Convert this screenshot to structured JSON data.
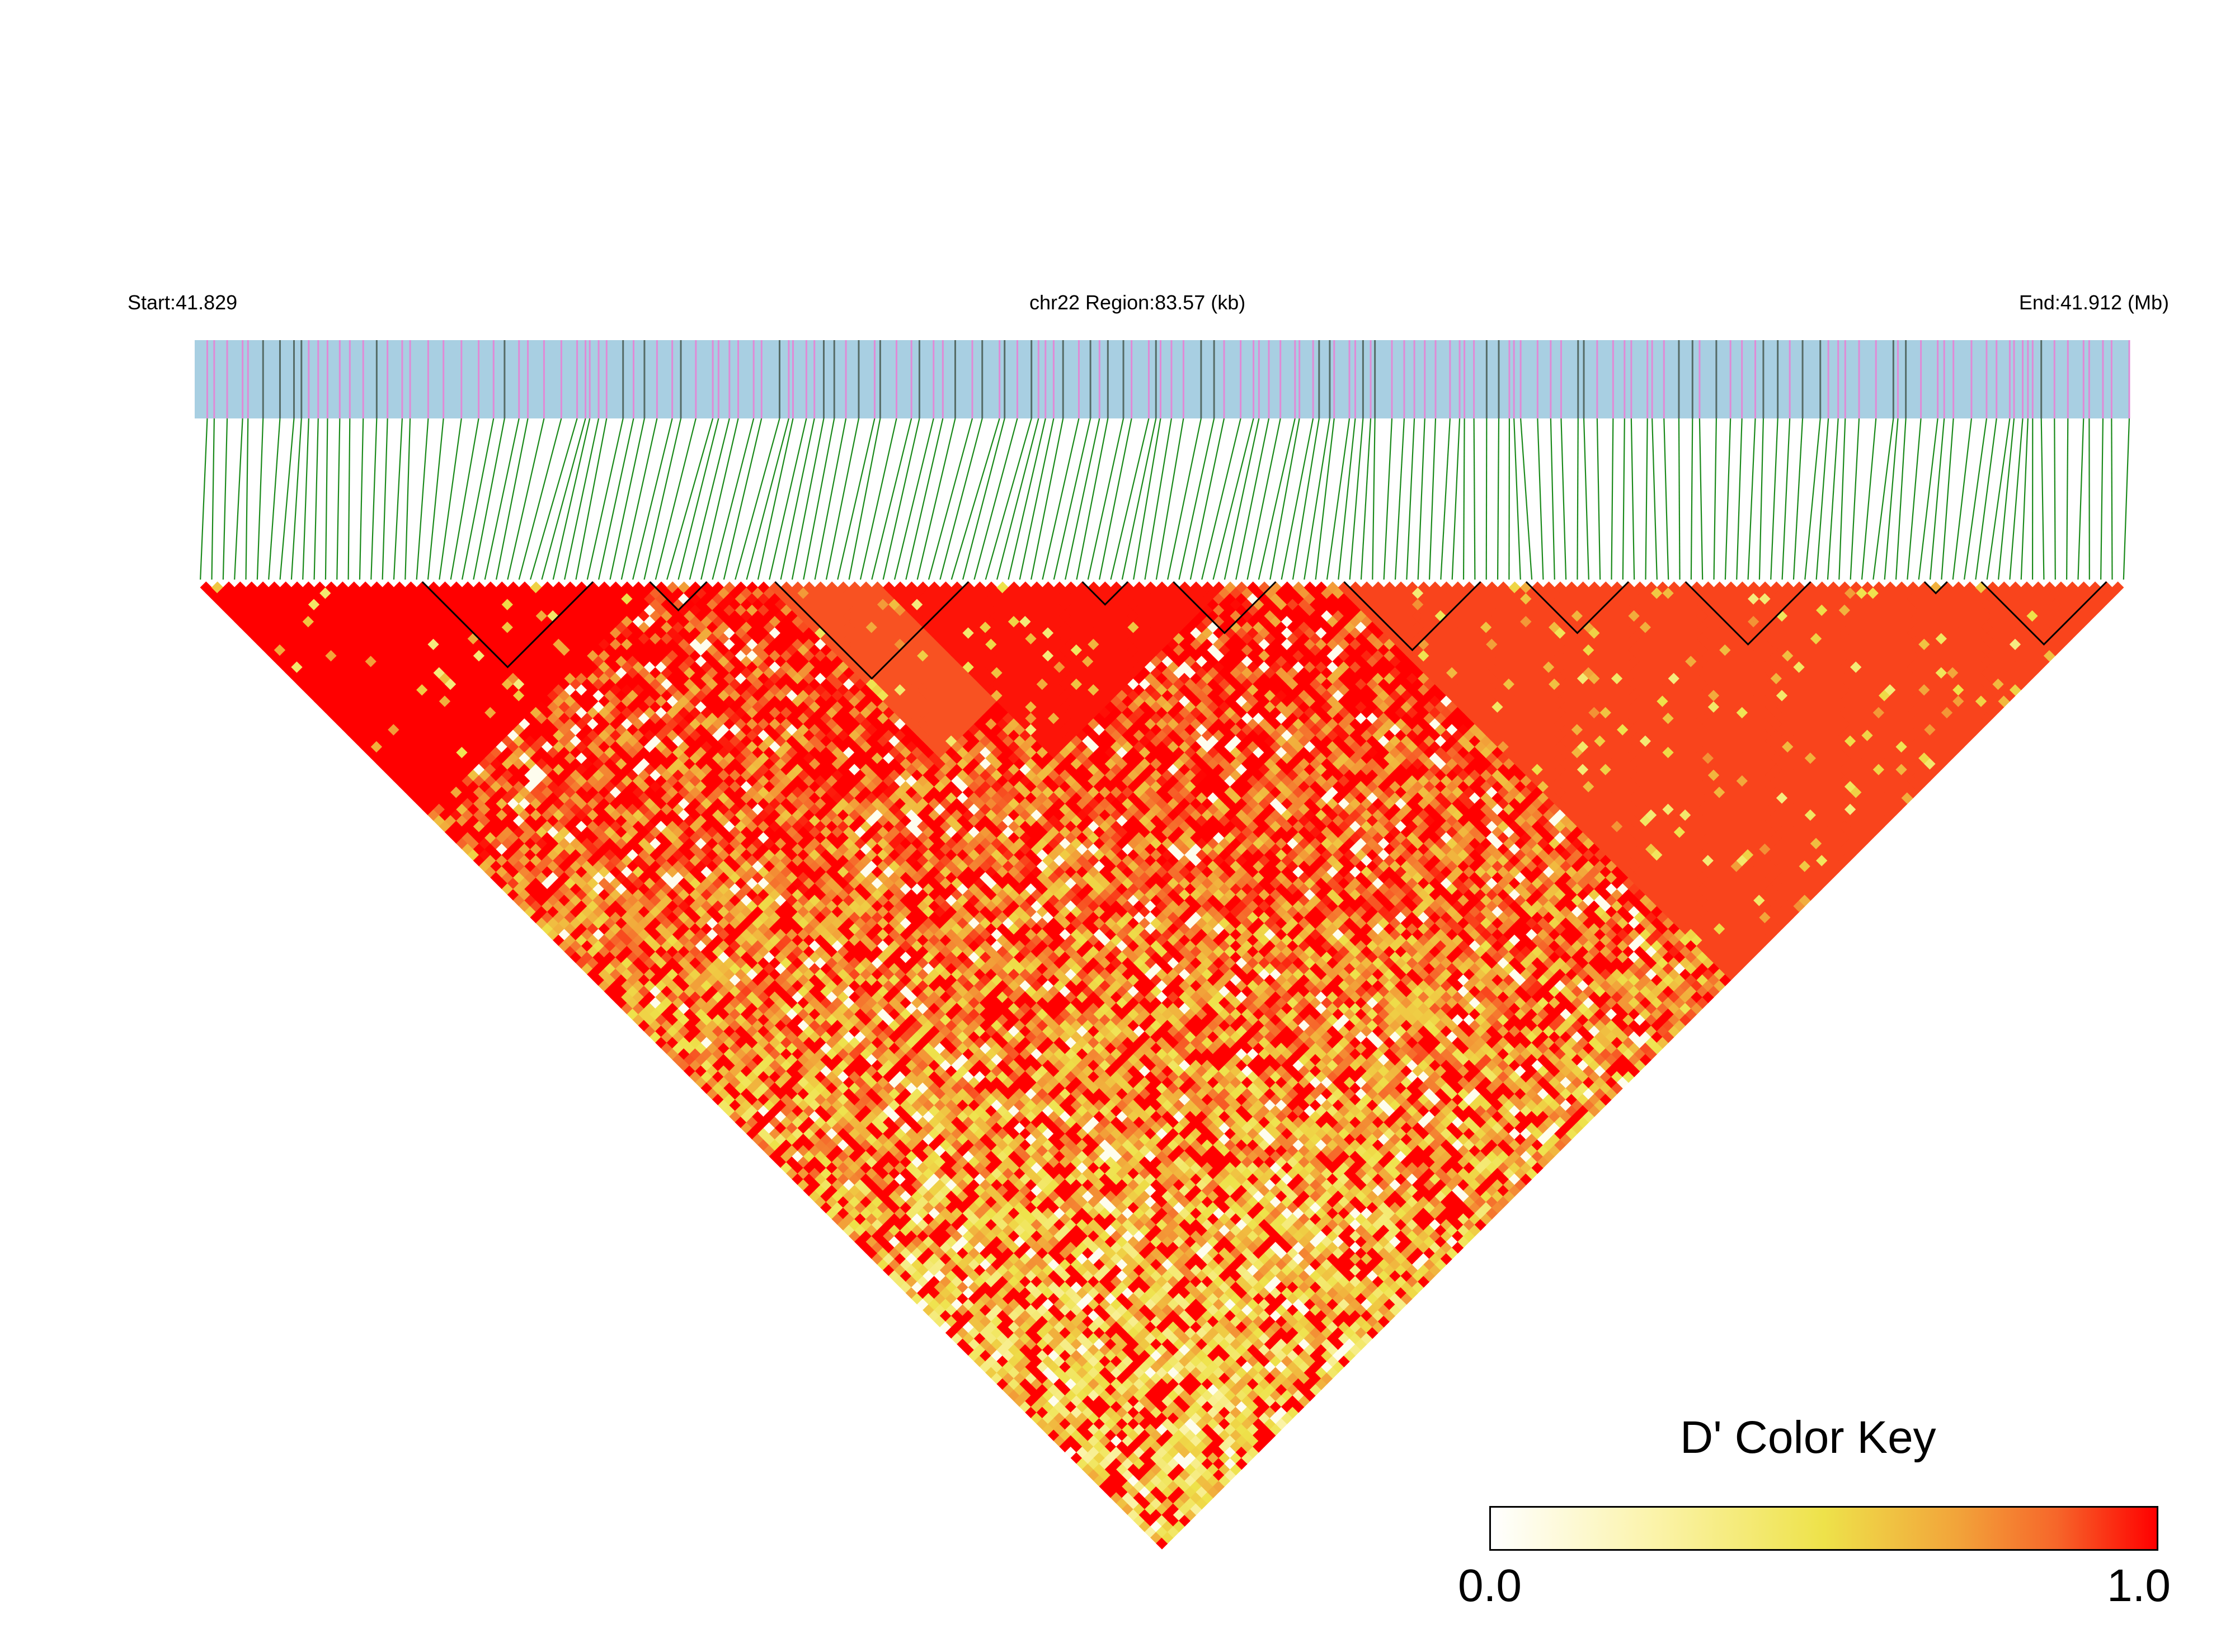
{
  "chart_data": {
    "type": "heatmap",
    "chromosome": "chr22",
    "start_label": "Start:41.829",
    "region_label": "chr22 Region:83.57 (kb)",
    "end_label": "End:41.912 (Mb)",
    "start_mb": 41.829,
    "end_mb": 41.912,
    "region_kb": 83.57,
    "n_snps": 170,
    "measure": "D'",
    "color_key": {
      "title": "D' Color Key",
      "min_label": "0.0",
      "max_label": "1.0",
      "range": [
        0.0,
        1.0
      ],
      "colors": [
        "#ffffff",
        "#fbf3a8",
        "#eee24a",
        "#f2a43a",
        "#f6662a",
        "#ff0000"
      ]
    },
    "colors": {
      "gene_track": "#a8cfe2",
      "snp_marker": "#e08ad6",
      "connector": "#1a8a1a",
      "block_outline": "#000000"
    },
    "ld_blocks_snp_ranges": [
      [
        20,
        34
      ],
      [
        40,
        44
      ],
      [
        51,
        67
      ],
      [
        78,
        81
      ],
      [
        86,
        94
      ],
      [
        101,
        112
      ],
      [
        117,
        125
      ],
      [
        131,
        141
      ],
      [
        152,
        153
      ],
      [
        157,
        167
      ]
    ],
    "dense_ld_bands": [
      [
        0,
        40,
        1.0
      ],
      [
        60,
        90,
        0.97
      ],
      [
        100,
        169,
        0.9
      ],
      [
        50,
        80,
        0.88
      ]
    ]
  }
}
